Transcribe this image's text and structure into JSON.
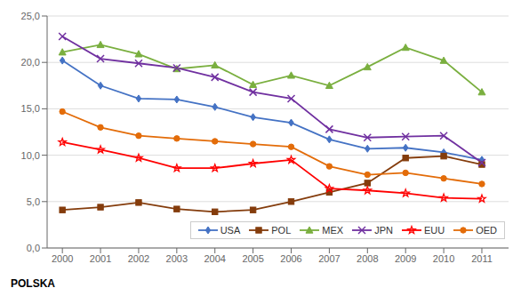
{
  "chart_data": {
    "type": "line",
    "title": "POLSKA",
    "x": [
      2000,
      2001,
      2002,
      2003,
      2004,
      2005,
      2006,
      2007,
      2008,
      2009,
      2010,
      2011
    ],
    "xlim": [
      1999.6,
      2011.7
    ],
    "xticks": [
      2000,
      2001,
      2002,
      2003,
      2004,
      2005,
      2006,
      2007,
      2008,
      2009,
      2010,
      2011
    ],
    "ylim": [
      0,
      25
    ],
    "yticks": [
      {
        "value": 0.0,
        "label": "0,0"
      },
      {
        "value": 5.0,
        "label": "5,0"
      },
      {
        "value": 10.0,
        "label": "10,0"
      },
      {
        "value": 15.0,
        "label": "15,0"
      },
      {
        "value": 20.0,
        "label": "20,0"
      },
      {
        "value": 25.0,
        "label": "25,0"
      }
    ],
    "grid": true,
    "legend": "lower right",
    "series": [
      {
        "name": "USA",
        "color": "#4472C4",
        "marker": "diamond",
        "values": [
          20.2,
          17.5,
          16.1,
          16.0,
          15.2,
          14.1,
          13.5,
          11.7,
          10.7,
          10.8,
          10.3,
          9.5
        ]
      },
      {
        "name": "POL",
        "color": "#843C0C",
        "marker": "square",
        "values": [
          4.1,
          4.4,
          4.9,
          4.2,
          3.9,
          4.1,
          5.0,
          6.0,
          7.0,
          9.7,
          9.9,
          9.0
        ]
      },
      {
        "name": "MEX",
        "color": "#7AAF3F",
        "marker": "triangle",
        "values": [
          21.1,
          21.9,
          20.9,
          19.3,
          19.7,
          17.6,
          18.6,
          17.5,
          19.5,
          21.6,
          20.2,
          16.8
        ]
      },
      {
        "name": "JPN",
        "color": "#7030A0",
        "marker": "x",
        "values": [
          22.8,
          20.4,
          19.9,
          19.4,
          18.4,
          16.8,
          16.1,
          12.8,
          11.9,
          12.0,
          12.1,
          9.2
        ]
      },
      {
        "name": "EUU",
        "color": "#FF0000",
        "marker": "star",
        "values": [
          11.4,
          10.6,
          9.7,
          8.6,
          8.6,
          9.1,
          9.5,
          6.4,
          6.2,
          5.9,
          5.4,
          5.3
        ]
      },
      {
        "name": "OED",
        "color": "#E36C09",
        "marker": "circle",
        "values": [
          14.7,
          13.0,
          12.1,
          11.8,
          11.5,
          11.2,
          10.9,
          8.8,
          7.9,
          8.1,
          7.5,
          6.9
        ]
      }
    ]
  }
}
